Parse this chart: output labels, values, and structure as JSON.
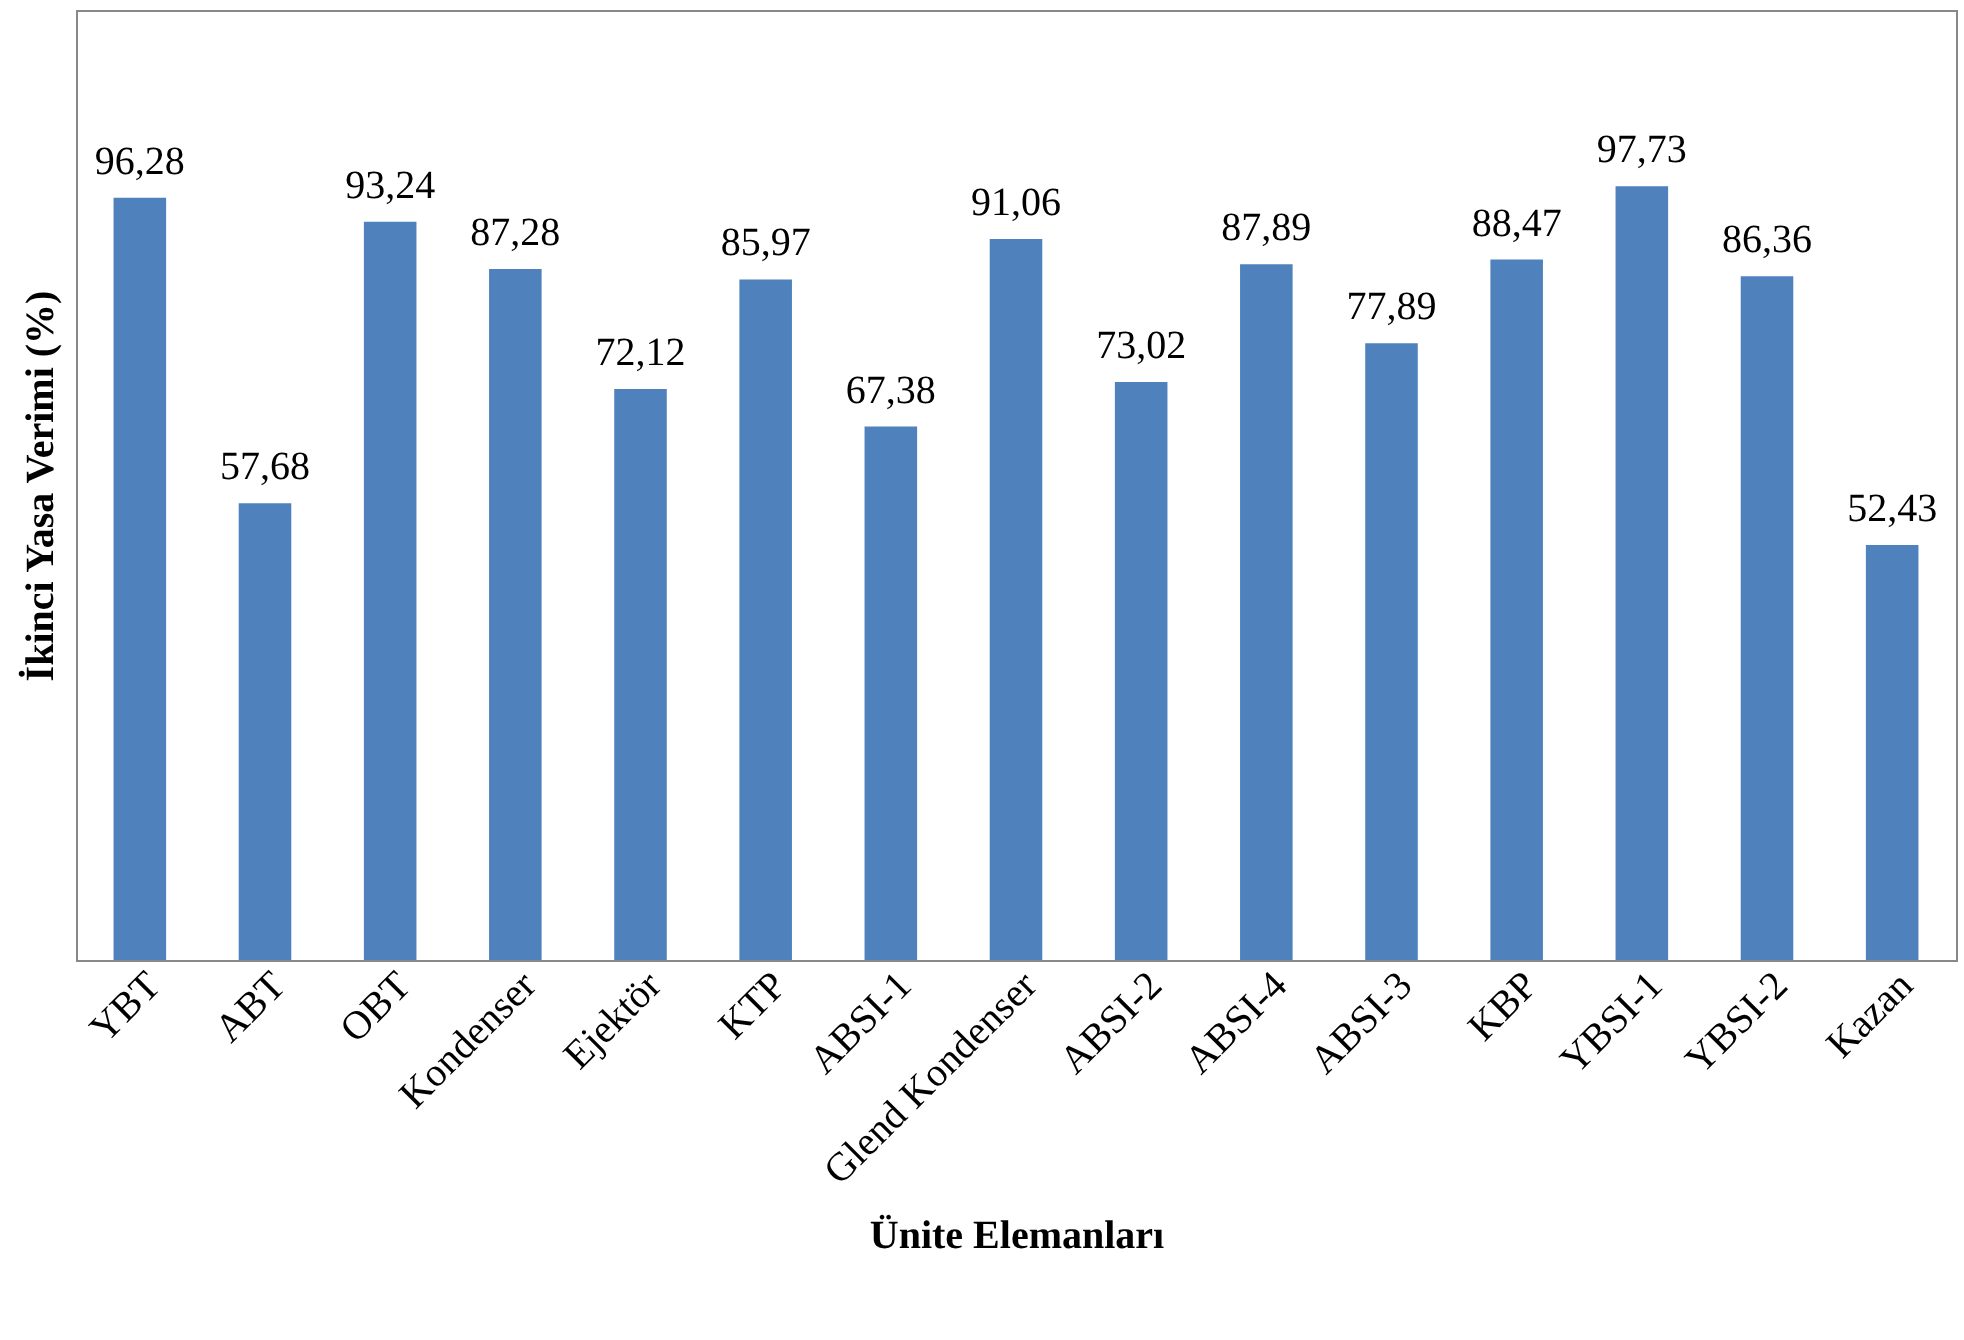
{
  "chart_data": {
    "type": "bar",
    "xlabel": "Ünite Elemanları",
    "ylabel": "İkinci Yasa Verimi (%)",
    "categories": [
      "YBT",
      "ABT",
      "OBT",
      "Kondenser",
      "Ejektör",
      "KTP",
      "ABSI-1",
      "Glend Kondenser",
      "ABSI-2",
      "ABSI-4",
      "ABSI-3",
      "KBP",
      "YBSI-1",
      "YBSI-2",
      "Kazan"
    ],
    "values": [
      96.28,
      57.68,
      93.24,
      87.28,
      72.12,
      85.97,
      67.38,
      91.06,
      73.02,
      87.89,
      77.89,
      88.47,
      97.73,
      86.36,
      52.43
    ],
    "value_labels": [
      "96,28",
      "57,68",
      "93,24",
      "87,28",
      "72,12",
      "85,97",
      "67,38",
      "91,06",
      "73,02",
      "87,89",
      "77,89",
      "88,47",
      "97,73",
      "86,36",
      "52,43"
    ],
    "color": "#4f81bd",
    "ylim": [
      0,
      120
    ],
    "grid": false
  }
}
